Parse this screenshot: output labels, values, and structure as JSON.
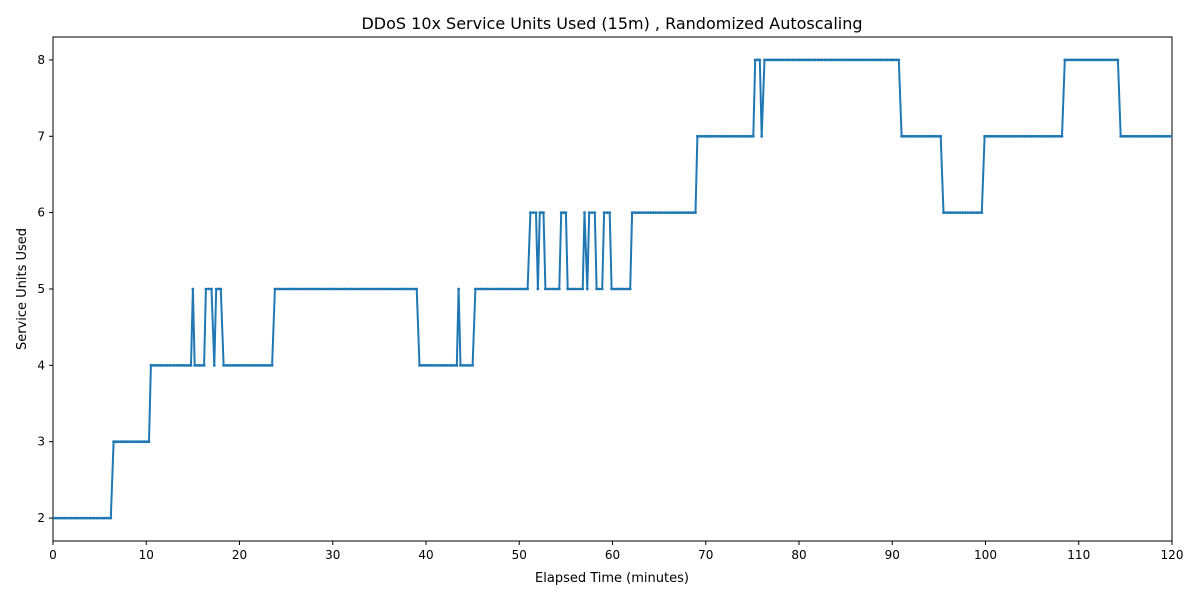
{
  "chart_data": {
    "type": "line",
    "title": "DDoS 10x Service Units Used (15m) , Randomized Autoscaling",
    "xlabel": "Elapsed Time (minutes)",
    "ylabel": "Service Units Used",
    "xlim": [
      0,
      120
    ],
    "ylim": [
      1.7,
      8.3
    ],
    "xticks": [
      0,
      10,
      20,
      30,
      40,
      50,
      60,
      70,
      80,
      90,
      100,
      110,
      120
    ],
    "yticks": [
      2,
      3,
      4,
      5,
      6,
      7,
      8
    ],
    "grid": false,
    "legend": "none",
    "series": [
      {
        "color": "#1f77b4",
        "marker": "small-dot",
        "x": [
          0,
          6.2,
          6.5,
          10.3,
          10.5,
          14.8,
          15.0,
          15.2,
          16.2,
          16.4,
          17.0,
          17.3,
          17.5,
          18.0,
          18.3,
          23.5,
          23.8,
          39.0,
          39.3,
          43.3,
          43.5,
          43.7,
          45.0,
          45.3,
          50.9,
          51.2,
          51.8,
          52.0,
          52.2,
          52.6,
          52.8,
          54.3,
          54.5,
          55.0,
          55.2,
          56.8,
          57.0,
          57.3,
          57.5,
          58.1,
          58.3,
          58.9,
          59.1,
          59.7,
          59.9,
          61.9,
          62.1,
          68.9,
          69.1,
          75.1,
          75.3,
          75.8,
          76.0,
          76.3,
          90.7,
          91.0,
          95.2,
          95.5,
          99.6,
          99.9,
          108.2,
          108.5,
          114.2,
          114.5,
          120
        ],
        "y": [
          2,
          2,
          3,
          3,
          4,
          4,
          5,
          4,
          4,
          5,
          5,
          4,
          5,
          5,
          4,
          4,
          5,
          5,
          4,
          4,
          5,
          4,
          4,
          5,
          5,
          6,
          6,
          5,
          6,
          6,
          5,
          5,
          6,
          6,
          5,
          5,
          6,
          5,
          6,
          6,
          5,
          5,
          6,
          6,
          5,
          5,
          6,
          6,
          7,
          7,
          8,
          8,
          7,
          8,
          8,
          7,
          7,
          6,
          6,
          7,
          7,
          8,
          8,
          7,
          7
        ]
      }
    ]
  }
}
